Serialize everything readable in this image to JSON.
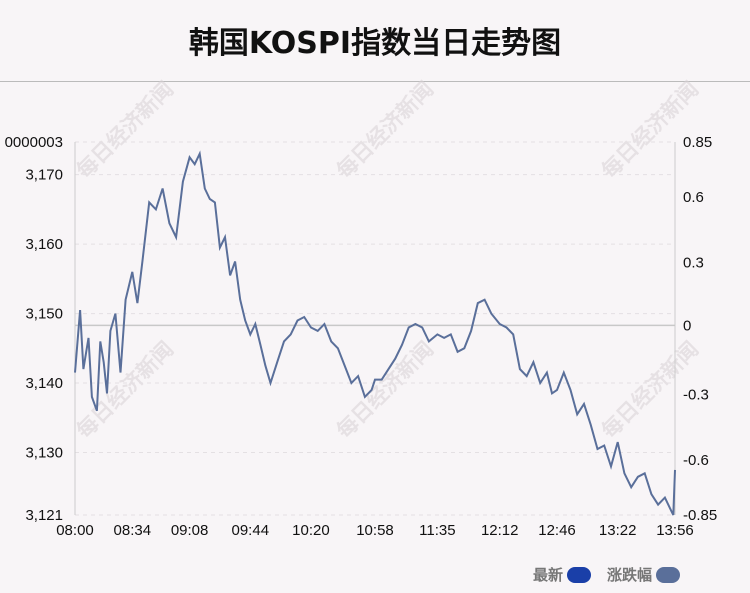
{
  "chart_data": {
    "type": "line",
    "title": "韩国KOSPI指数当日走势图",
    "y_left_ticks": [
      "3,121",
      "3,130",
      "3,140",
      "3,150",
      "3,160",
      "3,170",
      "0000003"
    ],
    "y_left_tick_values": [
      3121,
      3130,
      3140,
      3150,
      3160,
      3170,
      3174.7
    ],
    "y_right_ticks": [
      "-0.85",
      "-0.6",
      "-0.3",
      "0",
      "0.3",
      "0.6",
      "0.85"
    ],
    "y_right_tick_values": [
      -0.85,
      -0.6,
      -0.3,
      0,
      0.3,
      0.6,
      0.85
    ],
    "x_ticks": [
      "08:00",
      "08:34",
      "09:08",
      "09:44",
      "10:20",
      "10:58",
      "11:35",
      "12:12",
      "12:46",
      "13:22",
      "13:56"
    ],
    "ylim": [
      3121,
      3174.7
    ],
    "baseline": 3148.3,
    "series": [
      {
        "name": "最新",
        "color": "#5a6f9a",
        "x": [
          "08:00",
          "08:03",
          "08:05",
          "08:08",
          "08:10",
          "08:13",
          "08:15",
          "08:17",
          "08:19",
          "08:21",
          "08:24",
          "08:27",
          "08:30",
          "08:34",
          "08:37",
          "08:40",
          "08:44",
          "08:48",
          "08:52",
          "08:56",
          "09:00",
          "09:04",
          "09:08",
          "09:11",
          "09:14",
          "09:17",
          "09:20",
          "09:23",
          "09:26",
          "09:29",
          "09:32",
          "09:35",
          "09:38",
          "09:41",
          "09:44",
          "09:47",
          "09:50",
          "09:53",
          "09:56",
          "10:00",
          "10:04",
          "10:08",
          "10:12",
          "10:16",
          "10:20",
          "10:24",
          "10:28",
          "10:32",
          "10:36",
          "10:40",
          "10:44",
          "10:48",
          "10:52",
          "10:56",
          "10:58",
          "11:02",
          "11:06",
          "11:10",
          "11:14",
          "11:18",
          "11:22",
          "11:26",
          "11:30",
          "11:35",
          "11:39",
          "11:43",
          "11:47",
          "11:51",
          "11:55",
          "11:59",
          "12:03",
          "12:07",
          "12:12",
          "12:16",
          "12:20",
          "12:24",
          "12:28",
          "12:32",
          "12:36",
          "12:40",
          "12:43",
          "12:46",
          "12:50",
          "12:54",
          "12:58",
          "13:02",
          "13:06",
          "13:10",
          "13:14",
          "13:18",
          "13:22",
          "13:26",
          "13:30",
          "13:34",
          "13:38",
          "13:42",
          "13:46",
          "13:50",
          "13:53",
          "13:55",
          "13:56"
        ],
        "values": [
          3141.5,
          3150.5,
          3142.0,
          3146.5,
          3138.0,
          3136.0,
          3146.0,
          3143.0,
          3138.5,
          3147.5,
          3150.0,
          3141.5,
          3152.0,
          3156.0,
          3151.5,
          3157.5,
          3166.0,
          3165.0,
          3168.0,
          3163.0,
          3161.0,
          3169.0,
          3172.5,
          3171.5,
          3173.0,
          3168.0,
          3166.5,
          3166.0,
          3159.5,
          3161.0,
          3155.5,
          3157.5,
          3152.0,
          3149.0,
          3147.0,
          3148.5,
          3145.5,
          3142.5,
          3140.0,
          3143.0,
          3146.0,
          3147.0,
          3149.0,
          3149.5,
          3148.0,
          3147.5,
          3148.5,
          3146.0,
          3145.0,
          3142.5,
          3140.0,
          3141.0,
          3138.0,
          3139.0,
          3140.5,
          3140.5,
          3142.0,
          3143.5,
          3145.5,
          3148.0,
          3148.5,
          3148.0,
          3146.0,
          3147.0,
          3146.5,
          3147.0,
          3144.5,
          3145.0,
          3147.5,
          3151.5,
          3152.0,
          3150.0,
          3148.5,
          3148.0,
          3147.0,
          3142.0,
          3141.0,
          3143.0,
          3140.0,
          3141.5,
          3138.5,
          3139.0,
          3141.5,
          3139.0,
          3135.5,
          3137.0,
          3134.0,
          3130.5,
          3131.0,
          3128.0,
          3131.5,
          3127.0,
          3125.0,
          3126.5,
          3127.0,
          3124.0,
          3122.5,
          3123.5,
          3122.0,
          3121.0,
          3127.5
        ]
      }
    ],
    "legend": [
      {
        "label": "最新",
        "color": "#1a3fa8"
      },
      {
        "label": "涨跌幅",
        "color": "#5a6f9a"
      }
    ],
    "legend_position": "bottom-right",
    "grid": true
  },
  "watermark": "每日经济新闻"
}
